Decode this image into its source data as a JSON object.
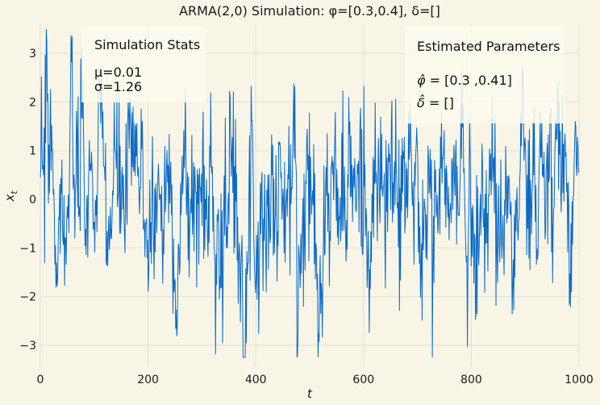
{
  "chart_data": {
    "type": "line",
    "title": "ARMA(2,0) Simulation: φ=[0.3,0.4], δ=[]",
    "xlabel": "t",
    "ylabel": "x_t",
    "xlim": [
      0,
      1000
    ],
    "ylim": [
      -3.45,
      3.6
    ],
    "x_ticks": [
      0,
      200,
      400,
      600,
      800,
      1000
    ],
    "y_ticks": [
      -3,
      -2,
      -1,
      0,
      1,
      2,
      3
    ],
    "x_tick_labels": [
      "0",
      "200",
      "400",
      "600",
      "800",
      "1000"
    ],
    "y_tick_labels": [
      "−3",
      "−2",
      "−1",
      "0",
      "1",
      "2",
      "3"
    ],
    "grid": true,
    "series": [
      {
        "n_points": 1000,
        "color": "#0a6ac8"
      }
    ],
    "annotations": {
      "stats_box": {
        "heading": "Simulation Stats",
        "mean": "μ=0.01",
        "std": "σ=1.26",
        "placement": "top-left"
      },
      "params_box": {
        "heading": "Estimated Parameters",
        "phi_label": "φ̂",
        "phi_value": " = [0.3 ,0.41]",
        "delta_label": "δ̂",
        "delta_value": " = []",
        "placement": "top-right"
      }
    }
  },
  "colors": {
    "background": "#f8f5e7",
    "line": "#0a6ac8",
    "box_fill": "#fcfaec",
    "grid": "#e2dfd2"
  }
}
